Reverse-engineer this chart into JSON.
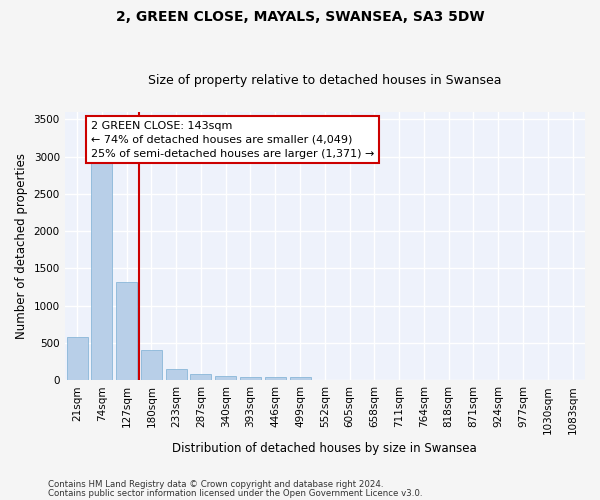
{
  "title": "2, GREEN CLOSE, MAYALS, SWANSEA, SA3 5DW",
  "subtitle": "Size of property relative to detached houses in Swansea",
  "xlabel": "Distribution of detached houses by size in Swansea",
  "ylabel": "Number of detached properties",
  "categories": [
    "21sqm",
    "74sqm",
    "127sqm",
    "180sqm",
    "233sqm",
    "287sqm",
    "340sqm",
    "393sqm",
    "446sqm",
    "499sqm",
    "552sqm",
    "605sqm",
    "658sqm",
    "711sqm",
    "764sqm",
    "818sqm",
    "871sqm",
    "924sqm",
    "977sqm",
    "1030sqm",
    "1083sqm"
  ],
  "values": [
    580,
    2920,
    1320,
    410,
    150,
    80,
    55,
    45,
    40,
    40,
    0,
    0,
    0,
    0,
    0,
    0,
    0,
    0,
    0,
    0,
    0
  ],
  "bar_color": "#b8cfe8",
  "bar_edge_color": "#7bafd4",
  "vline_x": 2.5,
  "vline_color": "#cc0000",
  "annotation_text": "2 GREEN CLOSE: 143sqm\n← 74% of detached houses are smaller (4,049)\n25% of semi-detached houses are larger (1,371) →",
  "annotation_box_color": "#ffffff",
  "annotation_box_edge": "#cc0000",
  "ylim": [
    0,
    3600
  ],
  "yticks": [
    0,
    500,
    1000,
    1500,
    2000,
    2500,
    3000,
    3500
  ],
  "background_color": "#eef2fb",
  "plot_bg_color": "#eef2fb",
  "fig_bg_color": "#f5f5f5",
  "grid_color": "#ffffff",
  "footer_line1": "Contains HM Land Registry data © Crown copyright and database right 2024.",
  "footer_line2": "Contains public sector information licensed under the Open Government Licence v3.0.",
  "title_fontsize": 10,
  "subtitle_fontsize": 9,
  "xlabel_fontsize": 8.5,
  "ylabel_fontsize": 8.5,
  "annot_fontsize": 8,
  "tick_fontsize": 7.5
}
